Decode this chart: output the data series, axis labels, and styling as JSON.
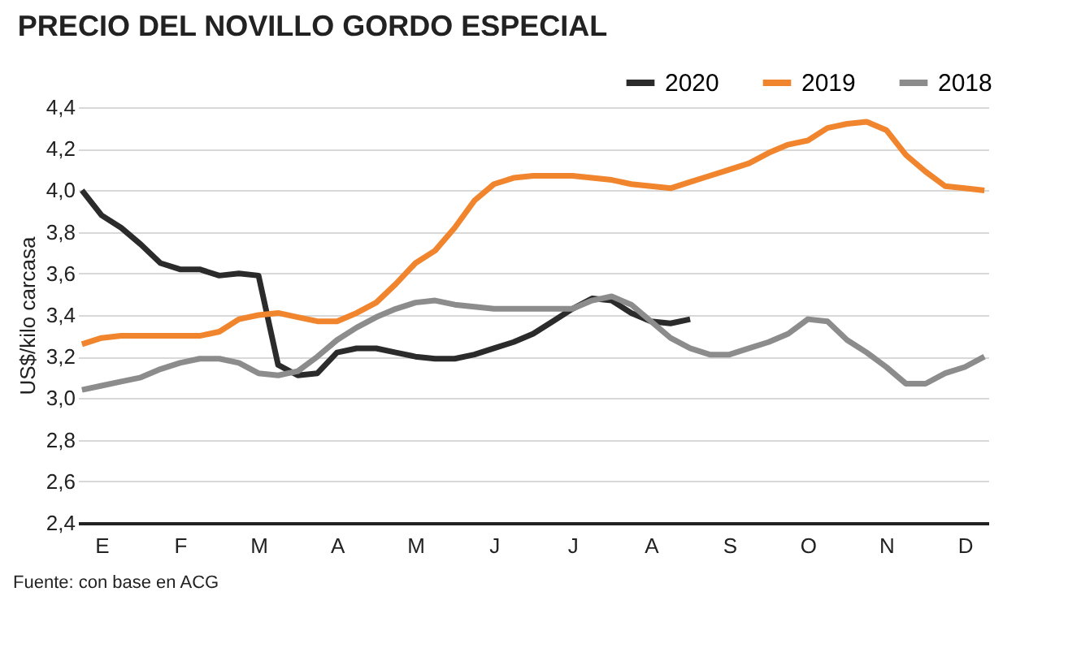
{
  "chart_data": {
    "type": "line",
    "title": "PRECIO DEL NOVILLO GORDO ESPECIAL",
    "ylabel": "US$/kilo carcasa",
    "annotations": [
      "Fuente: con base en ACG"
    ],
    "categories": [
      null,
      "E",
      null,
      null,
      null,
      "F",
      null,
      null,
      null,
      "M",
      null,
      null,
      null,
      "A",
      null,
      null,
      null,
      "M",
      null,
      null,
      null,
      "J",
      null,
      null,
      null,
      "J",
      null,
      null,
      null,
      "A",
      null,
      null,
      null,
      "S",
      null,
      null,
      null,
      "O",
      null,
      null,
      null,
      "N",
      null,
      null,
      null,
      "D",
      null
    ],
    "ylim": [
      2.4,
      4.4
    ],
    "yticks": [
      {
        "value": 2.4,
        "label": "2,4"
      },
      {
        "value": 2.6,
        "label": "2,6"
      },
      {
        "value": 2.8,
        "label": "2,8"
      },
      {
        "value": 3.0,
        "label": "3,0"
      },
      {
        "value": 3.2,
        "label": "3,2"
      },
      {
        "value": 3.4,
        "label": "3,4"
      },
      {
        "value": 3.6,
        "label": "3,6"
      },
      {
        "value": 3.8,
        "label": "3,8"
      },
      {
        "value": 4.0,
        "label": "4,0"
      },
      {
        "value": 4.2,
        "label": "4,2"
      },
      {
        "value": 4.4,
        "label": "4,4"
      }
    ],
    "grid": "y",
    "legend": "top right",
    "marker": "none",
    "line_style": "solid",
    "series": [
      {
        "name": "2020",
        "color": "#2b2b2b",
        "values": [
          4.0,
          3.88,
          3.82,
          3.74,
          3.65,
          3.62,
          3.62,
          3.59,
          3.6,
          3.59,
          3.16,
          3.11,
          3.12,
          3.22,
          3.24,
          3.24,
          3.22,
          3.2,
          3.19,
          3.19,
          3.21,
          3.24,
          3.27,
          3.31,
          3.37,
          3.43,
          3.48,
          3.47,
          3.41,
          3.37,
          3.36,
          3.38,
          null,
          null,
          null,
          null,
          null,
          null,
          null,
          null,
          null,
          null,
          null,
          null,
          null,
          null,
          null
        ]
      },
      {
        "name": "2019",
        "color": "#f0852d",
        "values": [
          3.26,
          3.29,
          3.3,
          3.3,
          3.3,
          3.3,
          3.3,
          3.32,
          3.38,
          3.4,
          3.41,
          3.39,
          3.37,
          3.37,
          3.41,
          3.46,
          3.55,
          3.65,
          3.71,
          3.82,
          3.95,
          4.03,
          4.06,
          4.07,
          4.07,
          4.07,
          4.06,
          4.05,
          4.03,
          4.02,
          4.01,
          4.04,
          4.07,
          4.1,
          4.13,
          4.18,
          4.22,
          4.24,
          4.3,
          4.32,
          4.33,
          4.29,
          4.17,
          4.09,
          4.02,
          4.01,
          4.0
        ]
      },
      {
        "name": "2018",
        "color": "#8c8c8c",
        "values": [
          3.04,
          3.06,
          3.08,
          3.1,
          3.14,
          3.17,
          3.19,
          3.19,
          3.17,
          3.12,
          3.11,
          3.13,
          3.2,
          3.28,
          3.34,
          3.39,
          3.43,
          3.46,
          3.47,
          3.45,
          3.44,
          3.43,
          3.43,
          3.43,
          3.43,
          3.43,
          3.47,
          3.49,
          3.45,
          3.37,
          3.29,
          3.24,
          3.21,
          3.21,
          3.24,
          3.27,
          3.31,
          3.38,
          3.37,
          3.28,
          3.22,
          3.15,
          3.07,
          3.07,
          3.12,
          3.15,
          3.2
        ]
      }
    ]
  }
}
